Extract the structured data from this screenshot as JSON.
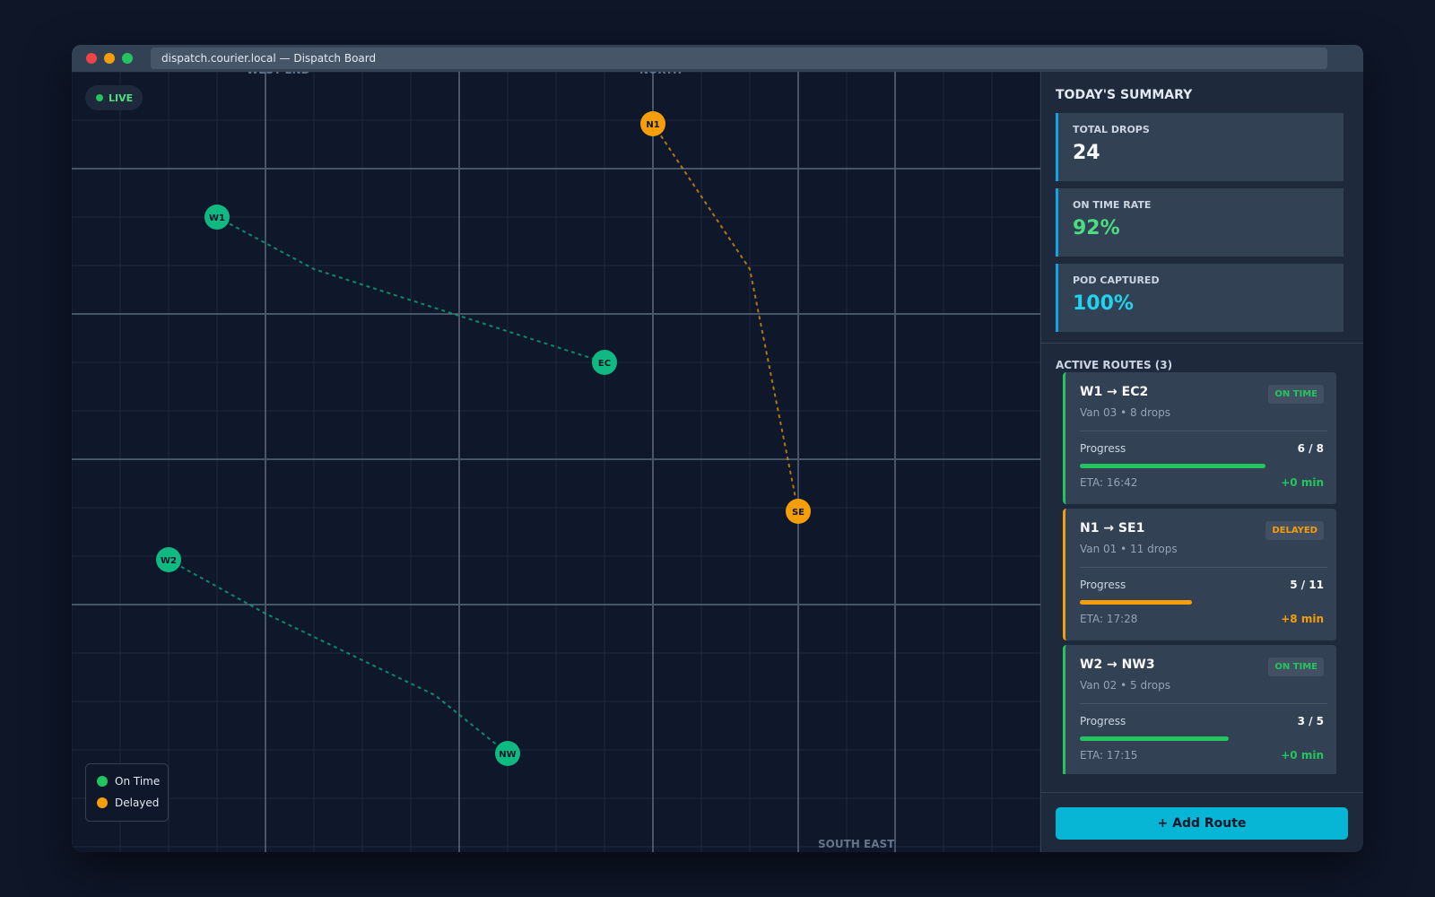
{
  "window": {
    "url": "dispatch.courier.local — Dispatch Board"
  },
  "map": {
    "live": "LIVE",
    "areas": [
      "WEST END",
      "NORTH",
      "SOUTH EAST"
    ],
    "nodes": [
      {
        "label": "W1",
        "color": "#10b981"
      },
      {
        "label": "EC",
        "color": "#10b981"
      },
      {
        "label": "N1",
        "color": "#f59e0b"
      },
      {
        "label": "SE",
        "color": "#f59e0b"
      },
      {
        "label": "W2",
        "color": "#10b981"
      },
      {
        "label": "NW",
        "color": "#10b981"
      }
    ],
    "legend": [
      {
        "label": "On Time",
        "color": "#22c55e"
      },
      {
        "label": "Delayed",
        "color": "#f59e0b"
      }
    ]
  },
  "summary": {
    "title": "TODAY'S SUMMARY",
    "stats": [
      {
        "label": "TOTAL DROPS",
        "value": "24",
        "color": "#f8fafc"
      },
      {
        "label": "ON TIME RATE",
        "value": "92%",
        "color": "#4ade80"
      },
      {
        "label": "POD CAPTURED",
        "value": "100%",
        "color": "#22d3ee"
      }
    ]
  },
  "routes": {
    "title": "ACTIVE ROUTES (3)",
    "items": [
      {
        "name": "W1 → EC2",
        "detail": "Van 03 • 8 drops",
        "status": "ON TIME",
        "color": "#22c55e",
        "progress_label": "Progress",
        "progress": {
          "label": "6 / 8",
          "done": 6,
          "total": 8
        },
        "eta": "ETA: 16:42",
        "delay": "+0 min"
      },
      {
        "name": "N1 → SE1",
        "detail": "Van 01 • 11 drops",
        "status": "DELAYED",
        "color": "#f59e0b",
        "progress_label": "Progress",
        "progress": {
          "label": "5 / 11",
          "done": 5,
          "total": 11
        },
        "eta": "ETA: 17:28",
        "delay": "+8 min"
      },
      {
        "name": "W2 → NW3",
        "detail": "Van 02 • 5 drops",
        "status": "ON TIME",
        "color": "#22c55e",
        "progress_label": "Progress",
        "progress": {
          "label": "3 / 5",
          "done": 3,
          "total": 5
        },
        "eta": "ETA: 17:15",
        "delay": "+0 min"
      }
    ]
  },
  "button": "+ Add Route"
}
